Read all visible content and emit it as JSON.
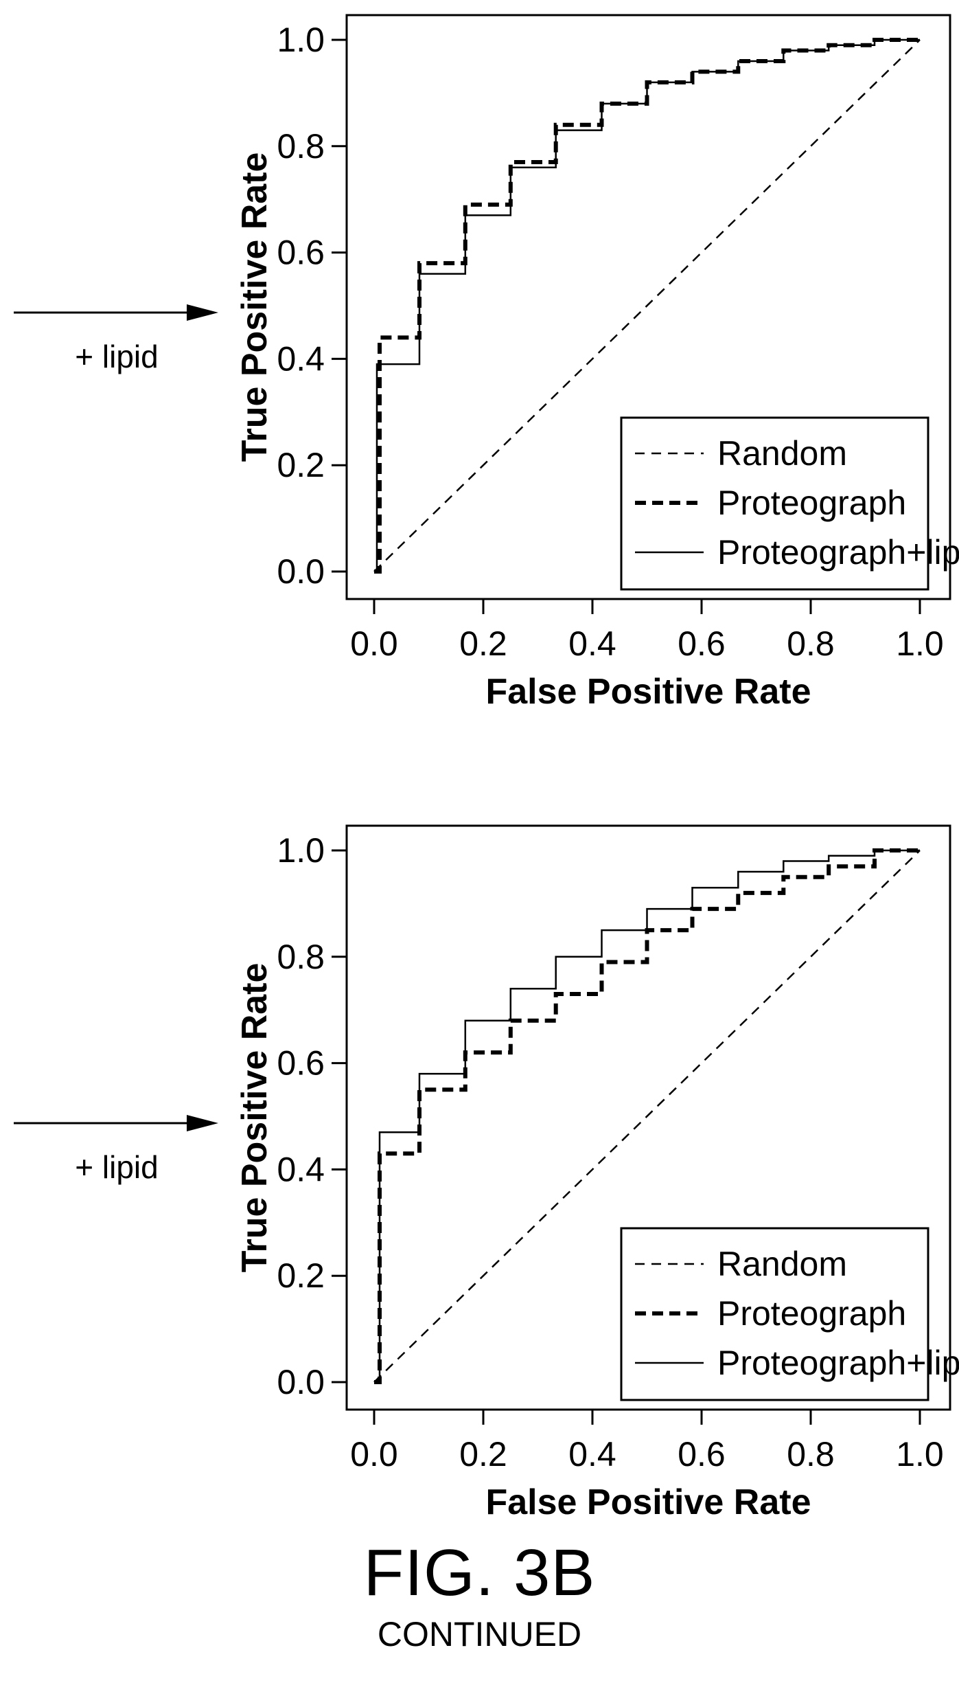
{
  "figure": {
    "title": "FIG. 3B",
    "continued": "CONTINUED"
  },
  "chart_data": [
    {
      "type": "line",
      "side_label": "+ lipid",
      "xlabel": "False Positive Rate",
      "ylabel": "True Positive Rate",
      "xlim": [
        0,
        1
      ],
      "ylim": [
        0,
        1
      ],
      "xticks": [
        "0.0",
        "0.2",
        "0.4",
        "0.6",
        "0.8",
        "1.0"
      ],
      "yticks": [
        "0.0",
        "0.2",
        "0.4",
        "0.6",
        "0.8",
        "1.0"
      ],
      "grid": false,
      "legend_position": "bottom-right",
      "series": [
        {
          "name": "Random",
          "style": "thin-dashed",
          "x": [
            0,
            1
          ],
          "y": [
            0,
            1
          ]
        },
        {
          "name": "Proteograph",
          "style": "thick-dashed",
          "x": [
            0,
            0.01,
            0.01,
            0.083,
            0.083,
            0.167,
            0.167,
            0.25,
            0.25,
            0.333,
            0.333,
            0.417,
            0.417,
            0.5,
            0.5,
            0.583,
            0.583,
            0.667,
            0.667,
            0.75,
            0.75,
            0.833,
            0.833,
            0.917,
            0.917,
            1
          ],
          "y": [
            0,
            0,
            0.44,
            0.44,
            0.58,
            0.58,
            0.69,
            0.69,
            0.77,
            0.77,
            0.84,
            0.84,
            0.88,
            0.88,
            0.92,
            0.92,
            0.94,
            0.94,
            0.96,
            0.96,
            0.98,
            0.98,
            0.99,
            0.99,
            1,
            1
          ]
        },
        {
          "name": "Proteograph+lipid",
          "style": "solid",
          "x": [
            0,
            0.005,
            0.005,
            0.083,
            0.083,
            0.167,
            0.167,
            0.25,
            0.25,
            0.333,
            0.333,
            0.417,
            0.417,
            0.5,
            0.5,
            0.583,
            0.583,
            0.667,
            0.667,
            0.75,
            0.75,
            0.833,
            0.833,
            0.917,
            0.917,
            1
          ],
          "y": [
            0,
            0,
            0.39,
            0.39,
            0.56,
            0.56,
            0.67,
            0.67,
            0.76,
            0.76,
            0.83,
            0.83,
            0.88,
            0.88,
            0.92,
            0.92,
            0.94,
            0.94,
            0.96,
            0.96,
            0.98,
            0.98,
            0.99,
            0.99,
            1,
            1
          ]
        }
      ]
    },
    {
      "type": "line",
      "side_label": "+ lipid",
      "xlabel": "False Positive Rate",
      "ylabel": "True Positive Rate",
      "xlim": [
        0,
        1
      ],
      "ylim": [
        0,
        1
      ],
      "xticks": [
        "0.0",
        "0.2",
        "0.4",
        "0.6",
        "0.8",
        "1.0"
      ],
      "yticks": [
        "0.0",
        "0.2",
        "0.4",
        "0.6",
        "0.8",
        "1.0"
      ],
      "grid": false,
      "legend_position": "bottom-right",
      "series": [
        {
          "name": "Random",
          "style": "thin-dashed",
          "x": [
            0,
            1
          ],
          "y": [
            0,
            1
          ]
        },
        {
          "name": "Proteograph",
          "style": "thick-dashed",
          "x": [
            0,
            0.01,
            0.01,
            0.083,
            0.083,
            0.167,
            0.167,
            0.25,
            0.25,
            0.333,
            0.333,
            0.417,
            0.417,
            0.5,
            0.5,
            0.583,
            0.583,
            0.667,
            0.667,
            0.75,
            0.75,
            0.833,
            0.833,
            0.917,
            0.917,
            1
          ],
          "y": [
            0,
            0,
            0.43,
            0.43,
            0.55,
            0.55,
            0.62,
            0.62,
            0.68,
            0.68,
            0.73,
            0.73,
            0.79,
            0.79,
            0.85,
            0.85,
            0.89,
            0.89,
            0.92,
            0.92,
            0.95,
            0.95,
            0.97,
            0.97,
            1,
            1
          ]
        },
        {
          "name": "Proteograph+lipid",
          "style": "solid",
          "x": [
            0,
            0.01,
            0.01,
            0.083,
            0.083,
            0.167,
            0.167,
            0.25,
            0.25,
            0.333,
            0.333,
            0.417,
            0.417,
            0.5,
            0.5,
            0.583,
            0.583,
            0.667,
            0.667,
            0.75,
            0.75,
            0.833,
            0.833,
            0.917,
            0.917,
            1
          ],
          "y": [
            0,
            0,
            0.47,
            0.47,
            0.58,
            0.58,
            0.68,
            0.68,
            0.74,
            0.74,
            0.8,
            0.8,
            0.85,
            0.85,
            0.89,
            0.89,
            0.93,
            0.93,
            0.96,
            0.96,
            0.98,
            0.98,
            0.99,
            0.99,
            1,
            1
          ]
        }
      ]
    }
  ]
}
